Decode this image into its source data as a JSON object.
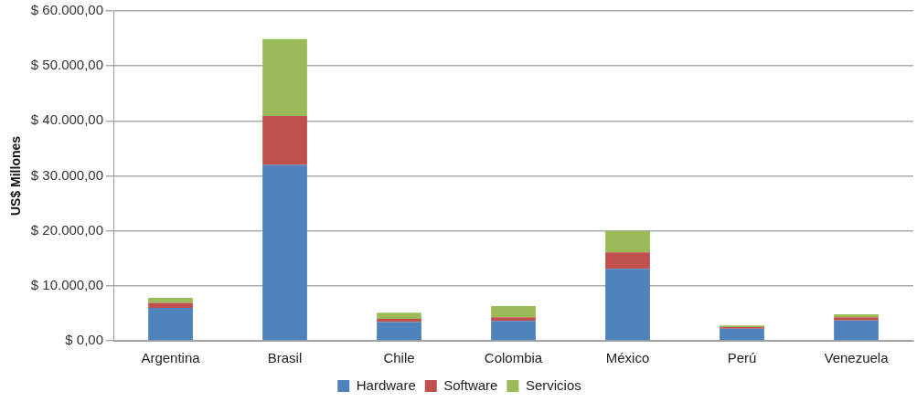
{
  "chart_data": {
    "type": "bar",
    "stacked": true,
    "ylabel": "US$ Millones",
    "categories": [
      "Argentina",
      "Brasil",
      "Chile",
      "Colombia",
      "México",
      "Perú",
      "Venezuela"
    ],
    "series": [
      {
        "name": "Hardware",
        "color": "#4f81bd",
        "values": [
          6000,
          32000,
          3400,
          3600,
          13100,
          2200,
          3700
        ]
      },
      {
        "name": "Software",
        "color": "#c0504d",
        "values": [
          900,
          8900,
          600,
          700,
          3000,
          300,
          600
        ]
      },
      {
        "name": "Servicios",
        "color": "#9bbb59",
        "values": [
          900,
          14000,
          1100,
          2000,
          3900,
          300,
          500
        ]
      }
    ],
    "ylim": [
      0,
      60000
    ],
    "yticks": [
      {
        "value": 0,
        "label": "$ 0,00"
      },
      {
        "value": 10000,
        "label": "$ 10.000,00"
      },
      {
        "value": 20000,
        "label": "$ 20.000,00"
      },
      {
        "value": 30000,
        "label": "$ 30.000,00"
      },
      {
        "value": 40000,
        "label": "$ 40.000,00"
      },
      {
        "value": 50000,
        "label": "$ 50.000,00"
      },
      {
        "value": 60000,
        "label": "$ 60.000,00"
      }
    ],
    "grid": "y",
    "legend": "bottom"
  }
}
